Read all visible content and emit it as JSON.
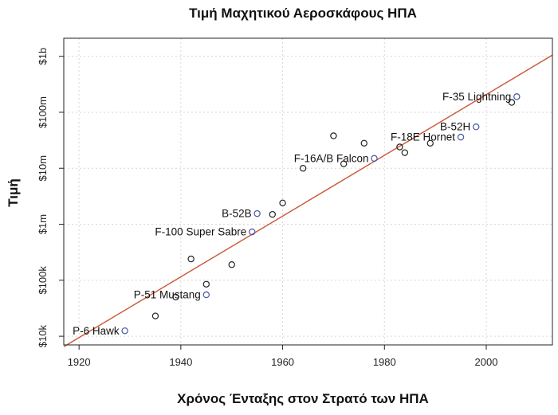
{
  "chart_data": {
    "type": "scatter",
    "title": "Τιμή Μαχητικού Αεροσκάφους ΗΠΑ",
    "xlabel": "Χρόνος Ένταξης στον Στρατό των ΗΠΑ",
    "ylabel": "Τιμή",
    "xlim": [
      1917,
      2013
    ],
    "ylim": [
      7000,
      2100000000
    ],
    "y_scale": "log",
    "grid": true,
    "x_ticks": [
      {
        "value": 1920,
        "label": "1920"
      },
      {
        "value": 1940,
        "label": "1940"
      },
      {
        "value": 1960,
        "label": "1960"
      },
      {
        "value": 1980,
        "label": "1980"
      },
      {
        "value": 2000,
        "label": "2000"
      }
    ],
    "y_ticks": [
      {
        "value": 10000,
        "label": "$10k"
      },
      {
        "value": 100000,
        "label": "$100k"
      },
      {
        "value": 1000000,
        "label": "$1m"
      },
      {
        "value": 10000000,
        "label": "$10m"
      },
      {
        "value": 100000000,
        "label": "$100m"
      },
      {
        "value": 1000000000,
        "label": "$1b"
      }
    ],
    "points": [
      {
        "x": 1929,
        "y": 12500,
        "label": "P-6 Hawk",
        "highlight": true,
        "color": "#4455aa"
      },
      {
        "x": 1935,
        "y": 23000,
        "label": "",
        "highlight": false,
        "color": "#222222"
      },
      {
        "x": 1939,
        "y": 50000,
        "label": "",
        "highlight": false,
        "color": "#222222"
      },
      {
        "x": 1942,
        "y": 240000,
        "label": "",
        "highlight": false,
        "color": "#222222"
      },
      {
        "x": 1945,
        "y": 55000,
        "label": "P-51 Mustang",
        "highlight": true,
        "color": "#4455aa"
      },
      {
        "x": 1945,
        "y": 85000,
        "label": "",
        "highlight": false,
        "color": "#222222"
      },
      {
        "x": 1950,
        "y": 190000,
        "label": "",
        "highlight": false,
        "color": "#222222"
      },
      {
        "x": 1954,
        "y": 730000,
        "label": "F-100 Super Sabre",
        "highlight": true,
        "color": "#4455aa"
      },
      {
        "x": 1955,
        "y": 1550000,
        "label": "B-52B",
        "highlight": true,
        "color": "#4455aa"
      },
      {
        "x": 1958,
        "y": 1500000,
        "label": "",
        "highlight": false,
        "color": "#222222"
      },
      {
        "x": 1960,
        "y": 2400000,
        "label": "",
        "highlight": false,
        "color": "#222222"
      },
      {
        "x": 1964,
        "y": 10000000,
        "label": "",
        "highlight": false,
        "color": "#222222"
      },
      {
        "x": 1970,
        "y": 38000000,
        "label": "",
        "highlight": false,
        "color": "#222222"
      },
      {
        "x": 1972,
        "y": 12000000,
        "label": "",
        "highlight": false,
        "color": "#222222"
      },
      {
        "x": 1976,
        "y": 28000000,
        "label": "",
        "highlight": false,
        "color": "#222222"
      },
      {
        "x": 1978,
        "y": 15000000,
        "label": "F-16A/B Falcon",
        "highlight": true,
        "color": "#4455aa"
      },
      {
        "x": 1983,
        "y": 24000000,
        "label": "",
        "highlight": false,
        "color": "#222222"
      },
      {
        "x": 1984,
        "y": 19000000,
        "label": "",
        "highlight": false,
        "color": "#222222"
      },
      {
        "x": 1989,
        "y": 28000000,
        "label": "",
        "highlight": false,
        "color": "#222222"
      },
      {
        "x": 1995,
        "y": 36000000,
        "label": "F-18E Hornet",
        "highlight": true,
        "color": "#4455aa"
      },
      {
        "x": 1998,
        "y": 55000000,
        "label": "B-52H",
        "highlight": true,
        "color": "#4455aa"
      },
      {
        "x": 2005,
        "y": 150000000,
        "label": "",
        "highlight": false,
        "color": "#222222"
      },
      {
        "x": 2006,
        "y": 190000000,
        "label": "F-35 Lightning",
        "highlight": true,
        "color": "#4455aa"
      }
    ],
    "trend_line": {
      "from": {
        "x": 1917,
        "y": 6500
      },
      "to": {
        "x": 2013,
        "y": 1050000000
      },
      "color": "#cc5533"
    }
  }
}
